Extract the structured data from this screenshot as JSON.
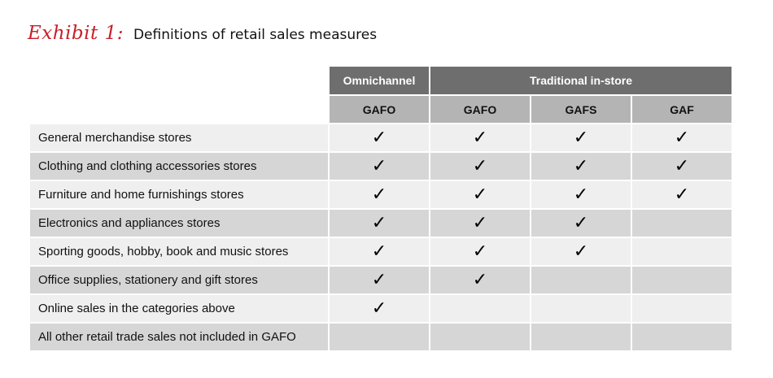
{
  "title": {
    "exhibit": "Exhibit 1:",
    "text": "Definitions of retail sales measures"
  },
  "header": {
    "groups": [
      "Omnichannel",
      "Traditional in-store"
    ],
    "subcolumns": [
      "GAFO",
      "GAFO",
      "GAFS",
      "GAF"
    ]
  },
  "check_glyph": "✓",
  "rows": [
    {
      "label": "General merchandise stores",
      "checks": [
        true,
        true,
        true,
        true
      ]
    },
    {
      "label": "Clothing and clothing accessories stores",
      "checks": [
        true,
        true,
        true,
        true
      ]
    },
    {
      "label": "Furniture and home furnishings stores",
      "checks": [
        true,
        true,
        true,
        true
      ]
    },
    {
      "label": "Electronics and appliances stores",
      "checks": [
        true,
        true,
        true,
        false
      ]
    },
    {
      "label": "Sporting goods, hobby, book and music stores",
      "checks": [
        true,
        true,
        true,
        false
      ]
    },
    {
      "label": "Office supplies, stationery and gift stores",
      "checks": [
        true,
        true,
        false,
        false
      ]
    },
    {
      "label": "Online sales in the categories above",
      "checks": [
        true,
        false,
        false,
        false
      ]
    },
    {
      "label": "All other retail trade sales not included in GAFO",
      "checks": [
        false,
        false,
        false,
        false
      ]
    }
  ],
  "colors": {
    "exhibit": "#c8202a",
    "group_header": "#6e6e6e",
    "sub_header": "#b4b4b4",
    "row_light": "#efefef",
    "row_dark": "#d6d6d6"
  }
}
